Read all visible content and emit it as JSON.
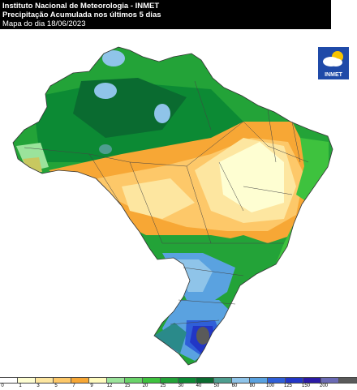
{
  "header": {
    "line1": "Instituto Nacional de Meteorologia - INMET",
    "line2": "Precipitação Acumulada nos últimos 5 dias",
    "line3": "Mapa do dia 18/06/2023"
  },
  "logo": {
    "label": "INMET"
  },
  "legend": {
    "unit": "mm",
    "bins": [
      {
        "value": "0",
        "color": "#ffffff"
      },
      {
        "value": "1",
        "color": "#fefed2"
      },
      {
        "value": "3",
        "color": "#fde6a0"
      },
      {
        "value": "5",
        "color": "#fdc869"
      },
      {
        "value": "7",
        "color": "#f7a735"
      },
      {
        "value": "9",
        "color": "#fffbbe"
      },
      {
        "value": "12",
        "color": "#9be39b"
      },
      {
        "value": "15",
        "color": "#6ad36a"
      },
      {
        "value": "20",
        "color": "#3ec23e"
      },
      {
        "value": "25",
        "color": "#23a338"
      },
      {
        "value": "30",
        "color": "#0c8a34"
      },
      {
        "value": "40",
        "color": "#0a6b30"
      },
      {
        "value": "50",
        "color": "#4e9e8f"
      },
      {
        "value": "60",
        "color": "#8fc4e9"
      },
      {
        "value": "80",
        "color": "#5aa2e0"
      },
      {
        "value": "100",
        "color": "#2f5fd8"
      },
      {
        "value": "125",
        "color": "#2236c6"
      },
      {
        "value": "150",
        "color": "#2a1aa5"
      },
      {
        "value": "200",
        "color": "#6a6ab4"
      },
      {
        "value": "",
        "color": "#5a5a5a"
      }
    ]
  }
}
